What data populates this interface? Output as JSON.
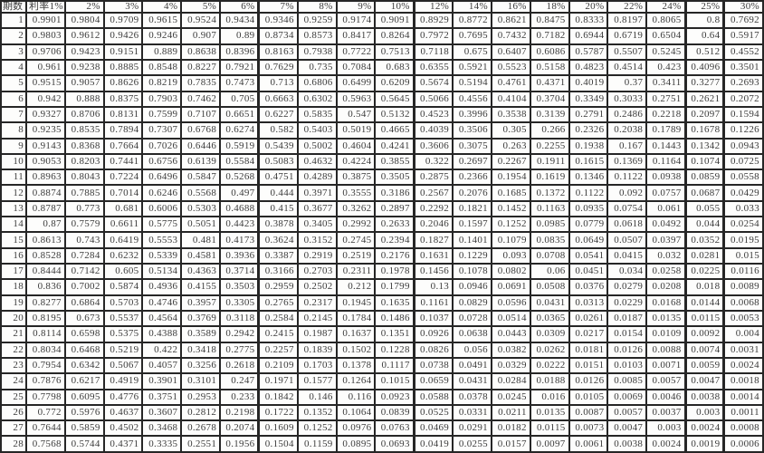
{
  "table": {
    "header": [
      "期数",
      "利率1%",
      "2%",
      "3%",
      "4%",
      "5%",
      "6%",
      "7%",
      "8%",
      "9%",
      "10%",
      "12%",
      "14%",
      "16%",
      "18%",
      "20%",
      "22%",
      "24%",
      "25%",
      "30%"
    ],
    "rows": [
      {
        "period": "1",
        "values": [
          "0.9901",
          "0.9804",
          "0.9709",
          "0.9615",
          "0.9524",
          "0.9434",
          "0.9346",
          "0.9259",
          "0.9174",
          "0.9091",
          "0.8929",
          "0.8772",
          "0.8621",
          "0.8475",
          "0.8333",
          "0.8197",
          "0.8065",
          "0.8",
          "0.7692"
        ]
      },
      {
        "period": "2",
        "values": [
          "0.9803",
          "0.9612",
          "0.9426",
          "0.9246",
          "0.907",
          "0.89",
          "0.8734",
          "0.8573",
          "0.8417",
          "0.8264",
          "0.7972",
          "0.7695",
          "0.7432",
          "0.7182",
          "0.6944",
          "0.6719",
          "0.6504",
          "0.64",
          "0.5917"
        ]
      },
      {
        "period": "3",
        "values": [
          "0.9706",
          "0.9423",
          "0.9151",
          "0.889",
          "0.8638",
          "0.8396",
          "0.8163",
          "0.7938",
          "0.7722",
          "0.7513",
          "0.7118",
          "0.675",
          "0.6407",
          "0.6086",
          "0.5787",
          "0.5507",
          "0.5245",
          "0.512",
          "0.4552"
        ]
      },
      {
        "period": "4",
        "values": [
          "0.961",
          "0.9238",
          "0.8885",
          "0.8548",
          "0.8227",
          "0.7921",
          "0.7629",
          "0.735",
          "0.7084",
          "0.683",
          "0.6355",
          "0.5921",
          "0.5523",
          "0.5158",
          "0.4823",
          "0.4514",
          "0.423",
          "0.4096",
          "0.3501"
        ]
      },
      {
        "period": "5",
        "values": [
          "0.9515",
          "0.9057",
          "0.8626",
          "0.8219",
          "0.7835",
          "0.7473",
          "0.713",
          "0.6806",
          "0.6499",
          "0.6209",
          "0.5674",
          "0.5194",
          "0.4761",
          "0.4371",
          "0.4019",
          "0.37",
          "0.3411",
          "0.3277",
          "0.2693"
        ]
      },
      {
        "period": "6",
        "values": [
          "0.942",
          "0.888",
          "0.8375",
          "0.7903",
          "0.7462",
          "0.705",
          "0.6663",
          "0.6302",
          "0.5963",
          "0.5645",
          "0.5066",
          "0.4556",
          "0.4104",
          "0.3704",
          "0.3349",
          "0.3033",
          "0.2751",
          "0.2621",
          "0.2072"
        ]
      },
      {
        "period": "7",
        "values": [
          "0.9327",
          "0.8706",
          "0.8131",
          "0.7599",
          "0.7107",
          "0.6651",
          "0.6227",
          "0.5835",
          "0.547",
          "0.5132",
          "0.4523",
          "0.3996",
          "0.3538",
          "0.3139",
          "0.2791",
          "0.2486",
          "0.2218",
          "0.2097",
          "0.1594"
        ]
      },
      {
        "period": "8",
        "values": [
          "0.9235",
          "0.8535",
          "0.7894",
          "0.7307",
          "0.6768",
          "0.6274",
          "0.582",
          "0.5403",
          "0.5019",
          "0.4665",
          "0.4039",
          "0.3506",
          "0.305",
          "0.266",
          "0.2326",
          "0.2038",
          "0.1789",
          "0.1678",
          "0.1226"
        ]
      },
      {
        "period": "9",
        "values": [
          "0.9143",
          "0.8368",
          "0.7664",
          "0.7026",
          "0.6446",
          "0.5919",
          "0.5439",
          "0.5002",
          "0.4604",
          "0.4241",
          "0.3606",
          "0.3075",
          "0.263",
          "0.2255",
          "0.1938",
          "0.167",
          "0.1443",
          "0.1342",
          "0.0943"
        ]
      },
      {
        "period": "10",
        "values": [
          "0.9053",
          "0.8203",
          "0.7441",
          "0.6756",
          "0.6139",
          "0.5584",
          "0.5083",
          "0.4632",
          "0.4224",
          "0.3855",
          "0.322",
          "0.2697",
          "0.2267",
          "0.1911",
          "0.1615",
          "0.1369",
          "0.1164",
          "0.1074",
          "0.0725"
        ]
      },
      {
        "period": "11",
        "values": [
          "0.8963",
          "0.8043",
          "0.7224",
          "0.6496",
          "0.5847",
          "0.5268",
          "0.4751",
          "0.4289",
          "0.3875",
          "0.3505",
          "0.2875",
          "0.2366",
          "0.1954",
          "0.1619",
          "0.1346",
          "0.1122",
          "0.0938",
          "0.0859",
          "0.0558"
        ]
      },
      {
        "period": "12",
        "values": [
          "0.8874",
          "0.7885",
          "0.7014",
          "0.6246",
          "0.5568",
          "0.497",
          "0.444",
          "0.3971",
          "0.3555",
          "0.3186",
          "0.2567",
          "0.2076",
          "0.1685",
          "0.1372",
          "0.1122",
          "0.092",
          "0.0757",
          "0.0687",
          "0.0429"
        ]
      },
      {
        "period": "13",
        "values": [
          "0.8787",
          "0.773",
          "0.681",
          "0.6006",
          "0.5303",
          "0.4688",
          "0.415",
          "0.3677",
          "0.3262",
          "0.2897",
          "0.2292",
          "0.1821",
          "0.1452",
          "0.1163",
          "0.0935",
          "0.0754",
          "0.061",
          "0.055",
          "0.033"
        ]
      },
      {
        "period": "14",
        "values": [
          "0.87",
          "0.7579",
          "0.6611",
          "0.5775",
          "0.5051",
          "0.4423",
          "0.3878",
          "0.3405",
          "0.2992",
          "0.2633",
          "0.2046",
          "0.1597",
          "0.1252",
          "0.0985",
          "0.0779",
          "0.0618",
          "0.0492",
          "0.044",
          "0.0254"
        ]
      },
      {
        "period": "15",
        "values": [
          "0.8613",
          "0.743",
          "0.6419",
          "0.5553",
          "0.481",
          "0.4173",
          "0.3624",
          "0.3152",
          "0.2745",
          "0.2394",
          "0.1827",
          "0.1401",
          "0.1079",
          "0.0835",
          "0.0649",
          "0.0507",
          "0.0397",
          "0.0352",
          "0.0195"
        ]
      },
      {
        "period": "16",
        "values": [
          "0.8528",
          "0.7284",
          "0.6232",
          "0.5339",
          "0.4581",
          "0.3936",
          "0.3387",
          "0.2919",
          "0.2519",
          "0.2176",
          "0.1631",
          "0.1229",
          "0.093",
          "0.0708",
          "0.0541",
          "0.0415",
          "0.032",
          "0.0281",
          "0.015"
        ]
      },
      {
        "period": "17",
        "values": [
          "0.8444",
          "0.7142",
          "0.605",
          "0.5134",
          "0.4363",
          "0.3714",
          "0.3166",
          "0.2703",
          "0.2311",
          "0.1978",
          "0.1456",
          "0.1078",
          "0.0802",
          "0.06",
          "0.0451",
          "0.034",
          "0.0258",
          "0.0225",
          "0.0116"
        ]
      },
      {
        "period": "18",
        "values": [
          "0.836",
          "0.7002",
          "0.5874",
          "0.4936",
          "0.4155",
          "0.3503",
          "0.2959",
          "0.2502",
          "0.212",
          "0.1799",
          "0.13",
          "0.0946",
          "0.0691",
          "0.0508",
          "0.0376",
          "0.0279",
          "0.0208",
          "0.018",
          "0.0089"
        ]
      },
      {
        "period": "19",
        "values": [
          "0.8277",
          "0.6864",
          "0.5703",
          "0.4746",
          "0.3957",
          "0.3305",
          "0.2765",
          "0.2317",
          "0.1945",
          "0.1635",
          "0.1161",
          "0.0829",
          "0.0596",
          "0.0431",
          "0.0313",
          "0.0229",
          "0.0168",
          "0.0144",
          "0.0068"
        ]
      },
      {
        "period": "20",
        "values": [
          "0.8195",
          "0.673",
          "0.5537",
          "0.4564",
          "0.3769",
          "0.3118",
          "0.2584",
          "0.2145",
          "0.1784",
          "0.1486",
          "0.1037",
          "0.0728",
          "0.0514",
          "0.0365",
          "0.0261",
          "0.0187",
          "0.0135",
          "0.0115",
          "0.0053"
        ]
      },
      {
        "period": "21",
        "values": [
          "0.8114",
          "0.6598",
          "0.5375",
          "0.4388",
          "0.3589",
          "0.2942",
          "0.2415",
          "0.1987",
          "0.1637",
          "0.1351",
          "0.0926",
          "0.0638",
          "0.0443",
          "0.0309",
          "0.0217",
          "0.0154",
          "0.0109",
          "0.0092",
          "0.004"
        ]
      },
      {
        "period": "22",
        "values": [
          "0.8034",
          "0.6468",
          "0.5219",
          "0.422",
          "0.3418",
          "0.2775",
          "0.2257",
          "0.1839",
          "0.1502",
          "0.1228",
          "0.0826",
          "0.056",
          "0.0382",
          "0.0262",
          "0.0181",
          "0.0126",
          "0.0088",
          "0.0074",
          "0.0031"
        ]
      },
      {
        "period": "23",
        "values": [
          "0.7954",
          "0.6342",
          "0.5067",
          "0.4057",
          "0.3256",
          "0.2618",
          "0.2109",
          "0.1703",
          "0.1378",
          "0.1117",
          "0.0738",
          "0.0491",
          "0.0329",
          "0.0222",
          "0.0151",
          "0.0103",
          "0.0071",
          "0.0059",
          "0.0024"
        ]
      },
      {
        "period": "24",
        "values": [
          "0.7876",
          "0.6217",
          "0.4919",
          "0.3901",
          "0.3101",
          "0.247",
          "0.1971",
          "0.1577",
          "0.1264",
          "0.1015",
          "0.0659",
          "0.0431",
          "0.0284",
          "0.0188",
          "0.0126",
          "0.0085",
          "0.0057",
          "0.0047",
          "0.0018"
        ]
      },
      {
        "period": "25",
        "values": [
          "0.7798",
          "0.6095",
          "0.4776",
          "0.3751",
          "0.2953",
          "0.233",
          "0.1842",
          "0.146",
          "0.116",
          "0.0923",
          "0.0588",
          "0.0378",
          "0.0245",
          "0.016",
          "0.0105",
          "0.0069",
          "0.0046",
          "0.0038",
          "0.0014"
        ]
      },
      {
        "period": "26",
        "values": [
          "0.772",
          "0.5976",
          "0.4637",
          "0.3607",
          "0.2812",
          "0.2198",
          "0.1722",
          "0.1352",
          "0.1064",
          "0.0839",
          "0.0525",
          "0.0331",
          "0.0211",
          "0.0135",
          "0.0087",
          "0.0057",
          "0.0037",
          "0.003",
          "0.0011"
        ]
      },
      {
        "period": "27",
        "values": [
          "0.7644",
          "0.5859",
          "0.4502",
          "0.3468",
          "0.2678",
          "0.2074",
          "0.1609",
          "0.1252",
          "0.0976",
          "0.0763",
          "0.0469",
          "0.0291",
          "0.0182",
          "0.0115",
          "0.0073",
          "0.0047",
          "0.003",
          "0.0024",
          "0.0008"
        ]
      },
      {
        "period": "28",
        "values": [
          "0.7568",
          "0.5744",
          "0.4371",
          "0.3335",
          "0.2551",
          "0.1956",
          "0.1504",
          "0.1159",
          "0.0895",
          "0.0693",
          "0.0419",
          "0.0255",
          "0.0157",
          "0.0097",
          "0.0061",
          "0.0038",
          "0.0024",
          "0.0019",
          "0.0006"
        ]
      }
    ]
  }
}
